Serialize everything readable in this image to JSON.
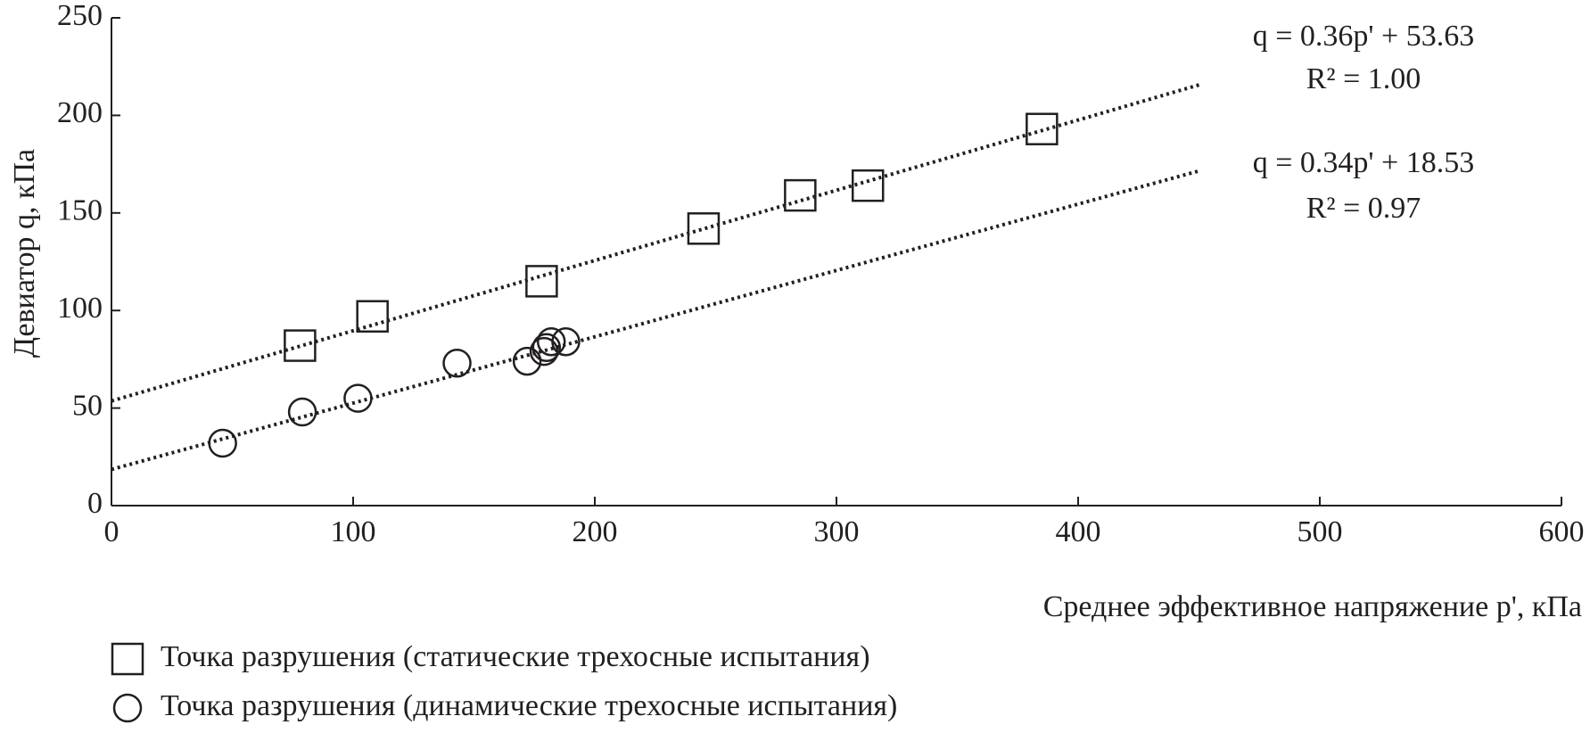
{
  "chart_data": {
    "type": "scatter",
    "x_label": "Среднее эффективное напряжение p', кПа",
    "y_label": "Девиатор q, кПа",
    "xlim": [
      0,
      600
    ],
    "xticks": [
      0,
      100,
      200,
      300,
      400,
      500,
      600
    ],
    "ylim": [
      0,
      250
    ],
    "yticks": [
      0,
      50,
      100,
      150,
      200,
      250
    ],
    "series": [
      {
        "name": "Точка разрушения (статические трехосные испытания)",
        "marker": "square",
        "color": "#231f20",
        "x": [
          78,
          108,
          178,
          245,
          285,
          313,
          385
        ],
        "values": [
          82,
          97,
          115,
          142,
          159,
          164,
          193
        ]
      },
      {
        "name": "Точка разрушения (динамические трехосные испытания)",
        "marker": "circle",
        "color": "#231f20",
        "x": [
          46,
          79,
          102,
          143,
          172,
          179,
          180,
          182,
          188
        ],
        "values": [
          32,
          48,
          55,
          73,
          74,
          79,
          81,
          84,
          84
        ]
      }
    ],
    "trendlines": [
      {
        "equation": "q = 0.36p' + 53.63",
        "r2": "R² = 1.00",
        "slope": 0.36,
        "intercept": 53.63,
        "x": [
          0,
          450
        ]
      },
      {
        "equation": "q = 0.34p' + 18.53",
        "r2": "R² = 0.97",
        "slope": 0.34,
        "intercept": 18.53,
        "x": [
          0,
          450
        ]
      }
    ]
  }
}
